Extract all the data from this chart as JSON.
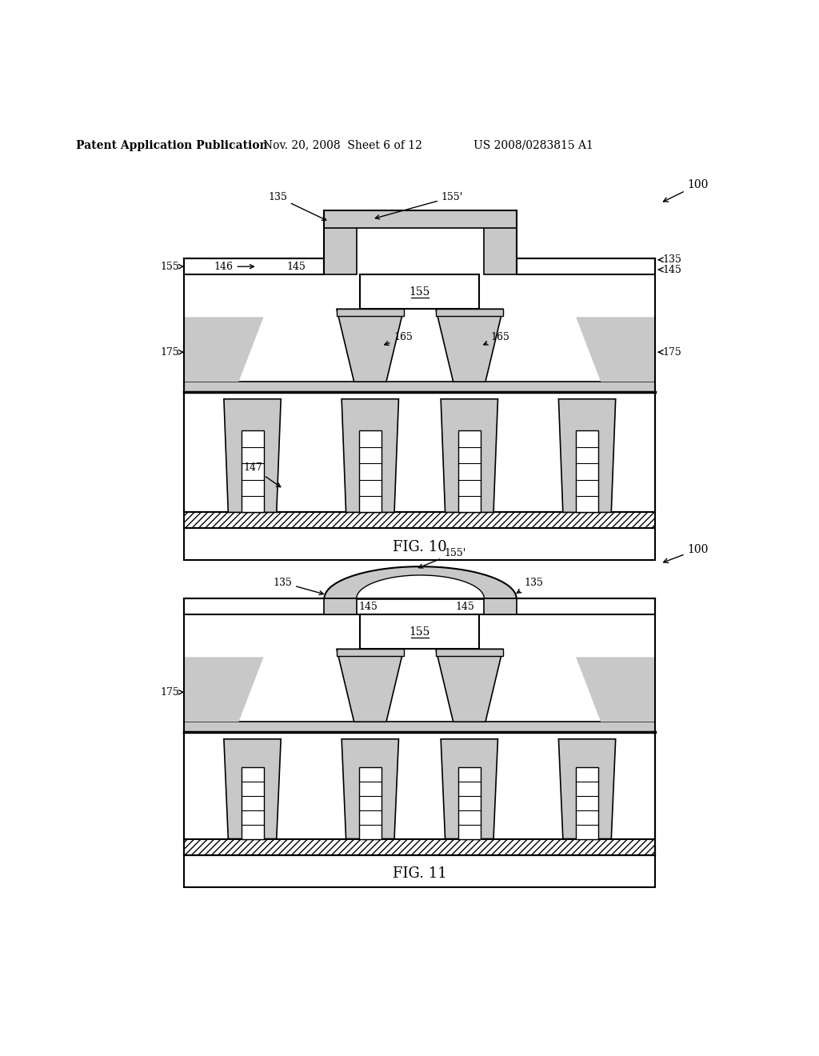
{
  "background_color": "#ffffff",
  "header_text": "Patent Application Publication",
  "header_date": "Nov. 20, 2008  Sheet 6 of 12",
  "header_patent": "US 2008/0283815 A1",
  "fig10_label": "FIG. 10",
  "fig11_label": "FIG. 11",
  "line_color": "#000000",
  "fill_stipple": "#c8c8c8",
  "hatch_color": "#000000"
}
